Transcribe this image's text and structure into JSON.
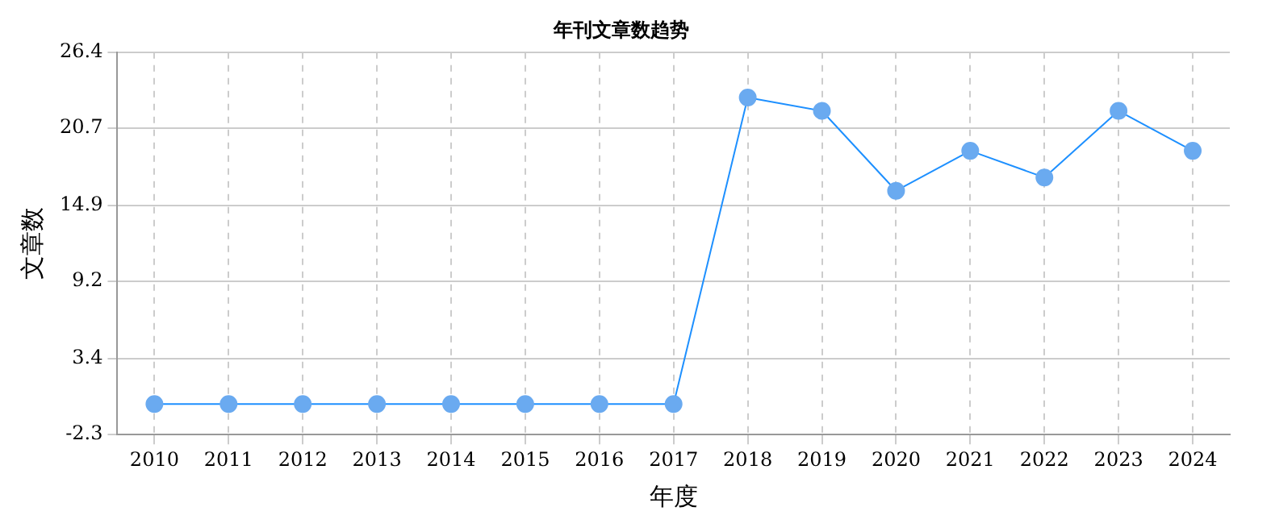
{
  "chart_data": {
    "type": "line",
    "title": "年刊文章数趋势",
    "xlabel": "年度",
    "ylabel": "文章数",
    "categories": [
      "2010",
      "2011",
      "2012",
      "2013",
      "2014",
      "2015",
      "2016",
      "2017",
      "2018",
      "2019",
      "2020",
      "2021",
      "2022",
      "2023",
      "2024"
    ],
    "series": [
      {
        "color": "#1e90ff",
        "values": [
          0,
          0,
          0,
          0,
          0,
          0,
          0,
          0,
          23,
          22,
          16,
          19,
          17,
          22,
          19
        ]
      }
    ],
    "ylim": [
      -2.3,
      26.4
    ],
    "yticks": [
      -2.3,
      3.4,
      9.2,
      14.9,
      20.7,
      26.4
    ],
    "grid": true,
    "legend": false,
    "marker": "circle",
    "line_style": "solid"
  }
}
